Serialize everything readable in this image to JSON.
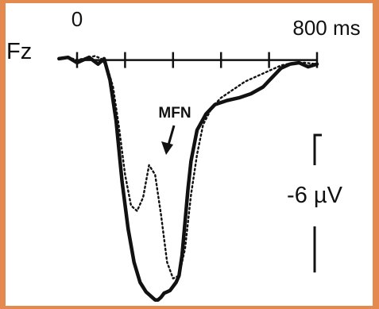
{
  "colors": {
    "frame": "#e58a4e",
    "panel": "#ffffff",
    "ink": "#111111"
  },
  "chart_data": {
    "type": "line",
    "channel_label": "Fz",
    "x_unit": "ms",
    "xlim": [
      0,
      800
    ],
    "x_tick_values": [
      0,
      160,
      320,
      480,
      640,
      800
    ],
    "x_tick_labels": [
      {
        "x": 0,
        "label": "0"
      },
      {
        "x": 800,
        "label": "800 ms"
      }
    ],
    "y_unit": "µV",
    "ylim": [
      -18,
      0.8
    ],
    "y_inverted": true,
    "scale_bar": {
      "value": -6,
      "label": "-6 µV"
    },
    "annotation": {
      "label": "MFN",
      "x": 240,
      "y": -7.2
    },
    "series": [
      {
        "style": "solid",
        "x": [
          -60,
          -30,
          0,
          40,
          70,
          90,
          110,
          130,
          150,
          170,
          190,
          210,
          230,
          250,
          260,
          270,
          280,
          290,
          300,
          310,
          320,
          330,
          340,
          350,
          360,
          370,
          380,
          400,
          430,
          460,
          500,
          540,
          580,
          620,
          650,
          680,
          710,
          740,
          770,
          800
        ],
        "y": [
          0.1,
          0.2,
          -0.2,
          0.2,
          -0.3,
          0.1,
          -1.5,
          -4.5,
          -9.0,
          -12.5,
          -15.0,
          -16.5,
          -17.2,
          -17.6,
          -17.8,
          -17.8,
          -17.6,
          -17.3,
          -17.2,
          -17.1,
          -16.8,
          -16.5,
          -16.0,
          -14.5,
          -12.0,
          -9.5,
          -7.5,
          -5.2,
          -4.0,
          -3.3,
          -3.0,
          -2.8,
          -2.5,
          -2.0,
          -1.3,
          -0.6,
          -0.3,
          -0.2,
          -0.5,
          -0.3
        ]
      },
      {
        "style": "dotted",
        "x": [
          -60,
          -30,
          0,
          40,
          60,
          80,
          100,
          120,
          140,
          160,
          180,
          200,
          220,
          240,
          260,
          280,
          300,
          320,
          340,
          360,
          380,
          400,
          420,
          450,
          480,
          520,
          560,
          600,
          640,
          680,
          720,
          760,
          800
        ],
        "y": [
          0.1,
          0.2,
          0.0,
          0.2,
          0.3,
          0.1,
          -0.5,
          -2.0,
          -5.0,
          -8.5,
          -10.8,
          -11.2,
          -10.2,
          -7.8,
          -8.5,
          -11.5,
          -15.0,
          -16.2,
          -16.0,
          -14.0,
          -10.0,
          -7.0,
          -4.8,
          -3.5,
          -2.8,
          -2.2,
          -1.6,
          -1.2,
          -0.8,
          -0.4,
          -0.2,
          -0.2,
          -0.3
        ]
      }
    ]
  }
}
